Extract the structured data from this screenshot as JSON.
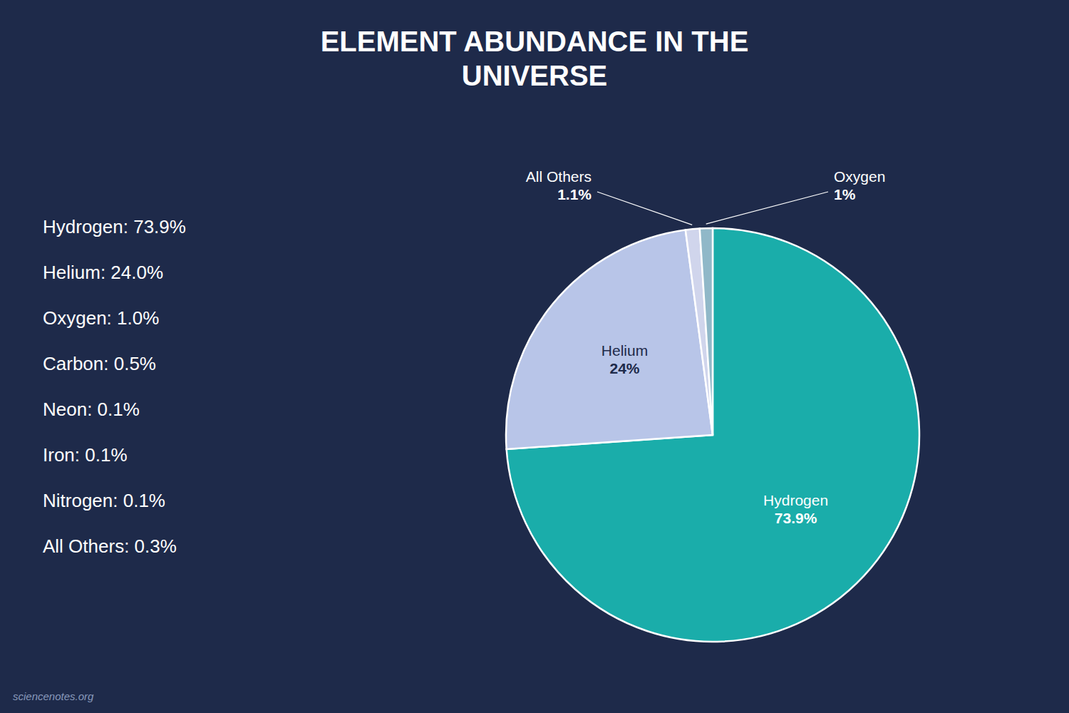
{
  "chart_data": {
    "type": "pie",
    "title": "ELEMENT ABUNDANCE IN THE\nUNIVERSE",
    "categories": [
      "Hydrogen",
      "Helium",
      "All Others",
      "Oxygen"
    ],
    "values": [
      73.9,
      24.0,
      1.1,
      1.0
    ],
    "value_labels": [
      "73.9%",
      "24%",
      "1.1%",
      "1%"
    ],
    "colors": [
      "#1aadaa",
      "#b8c5e8",
      "#d0d5ec",
      "#90b8c8"
    ],
    "data_labels": true,
    "annotations": [
      "Hydrogen: 73.9%",
      "Helium: 24.0%",
      "Oxygen: 1.0%",
      "Carbon: 0.5%",
      "Neon: 0.1%",
      "Iron: 0.1%",
      "Nitrogen: 0.1%",
      "All Others: 0.3%",
      "sciencenotes.org"
    ]
  }
}
